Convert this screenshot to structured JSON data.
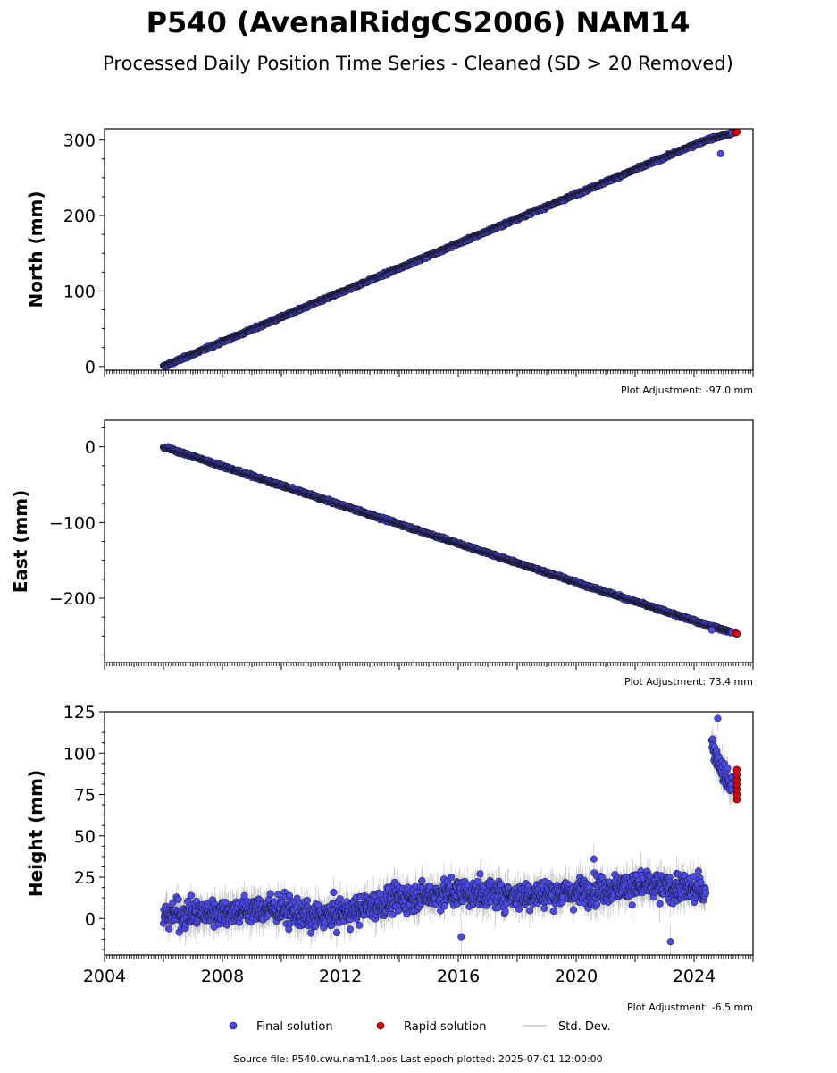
{
  "figure": {
    "title": "P540 (AvenalRidgCS2006) NAM14",
    "subtitle": "Processed Daily Position Time Series - Cleaned (SD > 20 Removed)",
    "footer": "Source file: P540.cwu.nam14.pos  Last epoch plotted: 2025-07-01 12:00:00",
    "colors": {
      "final": "#4a4ae8",
      "rapid": "#e00000",
      "stddev": "#b4b4b4",
      "marker_edge": "#111111"
    }
  },
  "legend": {
    "final_label": "Final solution",
    "rapid_label": "Rapid solution",
    "std_label": "Std. Dev."
  },
  "chart_data": [
    {
      "type": "scatter",
      "ylabel": "North (mm)",
      "adjustment": "Plot Adjustment: -97.0 mm",
      "xlim": [
        2004,
        2026
      ],
      "ylim": [
        -5,
        315
      ],
      "yticks": [
        0,
        100,
        200,
        300
      ],
      "ytick_labels": [
        "0",
        "100",
        "200",
        "300"
      ],
      "series": [
        {
          "name": "Final solution",
          "trend": [
            [
              2006.0,
              0
            ],
            [
              2024.4,
              300
            ],
            [
              2025.3,
              309
            ]
          ],
          "outliers": [
            [
              2024.9,
              282
            ]
          ],
          "noise_mm": 1.5
        },
        {
          "name": "Rapid solution",
          "values": [
            [
              2025.4,
              310
            ],
            [
              2025.45,
              311
            ]
          ]
        }
      ]
    },
    {
      "type": "scatter",
      "ylabel": "East (mm)",
      "adjustment": "Plot Adjustment: 73.4 mm",
      "xlim": [
        2004,
        2026
      ],
      "ylim": [
        -285,
        35
      ],
      "yticks": [
        0,
        -100,
        -200
      ],
      "ytick_labels": [
        "0",
        "−100",
        "−200"
      ],
      "series": [
        {
          "name": "Final solution",
          "trend": [
            [
              2006.0,
              0
            ],
            [
              2024.4,
              -235
            ],
            [
              2025.3,
              -245
            ]
          ],
          "outliers": [
            [
              2024.6,
              -242
            ]
          ],
          "noise_mm": 1.5
        },
        {
          "name": "Rapid solution",
          "values": [
            [
              2025.4,
              -246
            ],
            [
              2025.45,
              -247
            ]
          ]
        }
      ]
    },
    {
      "type": "scatter",
      "ylabel": "Height (mm)",
      "adjustment": "Plot Adjustment: -6.5 mm",
      "xlim": [
        2004,
        2026
      ],
      "ylim": [
        -22,
        125
      ],
      "yticks": [
        0,
        25,
        50,
        75,
        100,
        125
      ],
      "ytick_labels": [
        "0",
        "25",
        "50",
        "75",
        "100",
        "125"
      ],
      "xticks": [
        2004,
        2008,
        2012,
        2016,
        2020,
        2024
      ],
      "xtick_labels": [
        "2004",
        "2008",
        "2012",
        "2016",
        "2020",
        "2024"
      ],
      "series": [
        {
          "name": "Final solution",
          "trend": [
            [
              2006.0,
              2
            ],
            [
              2008.0,
              4
            ],
            [
              2010.0,
              6
            ],
            [
              2011.0,
              0
            ],
            [
              2012.5,
              5
            ],
            [
              2014.0,
              12
            ],
            [
              2016.0,
              16
            ],
            [
              2018.0,
              14
            ],
            [
              2020.0,
              16
            ],
            [
              2022.0,
              20
            ],
            [
              2024.4,
              17
            ]
          ],
          "post_offset": [
            [
              2024.6,
              105
            ],
            [
              2025.0,
              88
            ],
            [
              2025.3,
              78
            ]
          ],
          "outliers": [
            [
              2016.1,
              -11
            ],
            [
              2023.2,
              -14
            ],
            [
              2024.8,
              121
            ],
            [
              2020.6,
              36
            ]
          ],
          "noise_mm": 7
        },
        {
          "name": "Rapid solution",
          "values": [
            [
              2025.45,
              72
            ],
            [
              2025.45,
              75
            ],
            [
              2025.45,
              78
            ],
            [
              2025.45,
              81
            ],
            [
              2025.45,
              84
            ],
            [
              2025.45,
              87
            ],
            [
              2025.45,
              90
            ]
          ]
        }
      ]
    }
  ]
}
